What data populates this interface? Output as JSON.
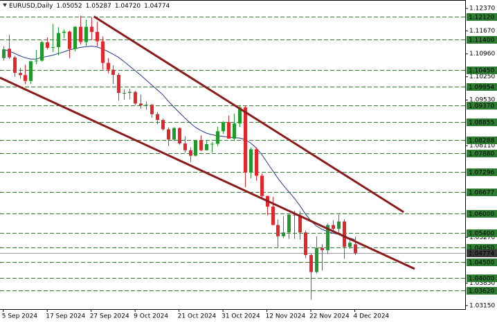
{
  "chart_data": {
    "type": "candlestick",
    "symbol": "EURUSD,Daily",
    "header_values": [
      "1.05052",
      "1.05287",
      "1.04720",
      "1.04774"
    ],
    "categories": [
      "5 Sep 2024",
      null,
      null,
      null,
      null,
      null,
      null,
      null,
      "17 Sep 2024",
      null,
      null,
      null,
      null,
      null,
      null,
      null,
      "27 Sep 2024",
      null,
      null,
      null,
      null,
      null,
      null,
      null,
      "9 Oct 2024",
      null,
      null,
      null,
      null,
      null,
      null,
      null,
      "21 Oct 2024",
      null,
      null,
      null,
      null,
      null,
      null,
      null,
      "31 Oct 2024",
      null,
      null,
      null,
      null,
      null,
      null,
      null,
      "12 Nov 2024",
      null,
      null,
      null,
      null,
      null,
      null,
      null,
      "22 Nov 2024",
      null,
      null,
      null,
      null,
      null,
      null,
      null,
      "4 Dec 2024"
    ],
    "open": [
      1.1083,
      1.1112,
      1.1085,
      1.1037,
      1.103,
      1.1012,
      1.1073,
      1.1075,
      1.1132,
      1.1115,
      1.1117,
      1.1161,
      1.1165,
      1.1111,
      1.118,
      1.1133,
      1.118,
      1.1164,
      1.1135,
      1.1068,
      1.1047,
      1.1031,
      1.0975,
      1.0975,
      1.0978,
      1.0942,
      1.0936,
      1.0938,
      1.0909,
      1.0891,
      1.0862,
      1.083,
      1.0866,
      1.0818,
      1.0797,
      1.078,
      1.0827,
      1.0797,
      1.0816,
      1.0817,
      1.0856,
      1.0884,
      1.0833,
      1.088,
      1.093,
      1.0728,
      1.08,
      1.0718,
      1.0655,
      1.0622,
      1.0565,
      1.053,
      1.0542,
      1.0597,
      1.0595,
      1.0542,
      1.0472,
      1.0419,
      1.0494,
      1.0487,
      1.0565,
      1.0553,
      1.0576,
      1.0497,
      1.05052
    ],
    "high": [
      1.112,
      1.1155,
      1.109,
      1.1052,
      1.1062,
      1.1075,
      1.1108,
      1.1137,
      1.1147,
      1.1189,
      1.1179,
      1.1172,
      1.1168,
      1.1182,
      1.1214,
      1.1202,
      1.1209,
      1.1196,
      1.115,
      1.1083,
      1.106,
      1.1037,
      1.0986,
      1.0988,
      1.0982,
      1.0969,
      1.0948,
      1.0941,
      1.0915,
      1.0896,
      1.0868,
      1.0869,
      1.0868,
      1.084,
      1.0806,
      1.0829,
      1.0843,
      1.0829,
      1.0823,
      1.087,
      1.0887,
      1.0905,
      1.091,
      1.0937,
      1.0936,
      1.0805,
      1.0806,
      1.0725,
      1.0656,
      1.0653,
      1.0582,
      1.0593,
      1.06,
      1.061,
      1.0608,
      1.0548,
      1.0476,
      1.053,
      1.0505,
      1.057,
      1.058,
      1.0597,
      1.0583,
      1.0525,
      1.05287
    ],
    "low": [
      1.1075,
      1.108,
      1.1025,
      1.102,
      1.1002,
      1.1003,
      1.1064,
      1.1072,
      1.111,
      1.1102,
      1.1091,
      1.1145,
      1.1083,
      1.1104,
      1.1125,
      1.1121,
      1.1139,
      1.112,
      1.1047,
      1.1036,
      1.1003,
      1.0951,
      1.0954,
      1.0955,
      1.0937,
      1.0926,
      1.0923,
      1.0898,
      1.0878,
      1.0858,
      1.081,
      1.0826,
      1.0814,
      1.079,
      1.0761,
      1.0778,
      1.0794,
      1.0796,
      1.079,
      1.081,
      1.0848,
      1.0834,
      1.0826,
      1.0869,
      1.0682,
      1.071,
      1.0702,
      1.065,
      1.0595,
      1.0566,
      1.0496,
      1.0524,
      1.0522,
      1.0522,
      1.052,
      1.0462,
      1.0333,
      1.0415,
      1.0423,
      1.0475,
      1.0542,
      1.0541,
      1.046,
      1.0492,
      1.0472
    ],
    "close": [
      1.111,
      1.1085,
      1.1037,
      1.103,
      1.1012,
      1.1073,
      1.1075,
      1.1132,
      1.1115,
      1.1117,
      1.1161,
      1.1165,
      1.1111,
      1.118,
      1.1133,
      1.118,
      1.1164,
      1.1135,
      1.1068,
      1.1047,
      1.1031,
      1.0975,
      1.0975,
      1.0978,
      1.0942,
      1.0936,
      1.0938,
      1.0909,
      1.0891,
      1.0862,
      1.083,
      1.0866,
      1.0818,
      1.0797,
      1.078,
      1.0827,
      1.0797,
      1.0816,
      1.0817,
      1.0856,
      1.0884,
      1.0833,
      1.088,
      1.093,
      1.0728,
      1.08,
      1.0718,
      1.0655,
      1.0622,
      1.0565,
      1.053,
      1.0542,
      1.0597,
      1.0595,
      1.0542,
      1.0472,
      1.0419,
      1.0494,
      1.0487,
      1.0565,
      1.0553,
      1.0576,
      1.0497,
      1.051,
      1.04774
    ],
    "up_color": "#1f9a2b",
    "down_color": "#e4262d",
    "ma": {
      "color": "#1f3a8a",
      "values": [
        1.111,
        1.1105,
        1.1098,
        1.109,
        1.1084,
        1.108,
        1.108,
        1.1085,
        1.1088,
        1.1092,
        1.1097,
        1.1102,
        1.1108,
        1.1112,
        1.1116,
        1.1118,
        1.112,
        1.1118,
        1.1112,
        1.1104,
        1.1095,
        1.1085,
        1.1072,
        1.1058,
        1.1044,
        1.103,
        1.1015,
        1.1,
        1.0985,
        1.097,
        1.095,
        1.0932,
        1.0915,
        1.0898,
        1.0882,
        1.0868,
        1.0858,
        1.085,
        1.0845,
        1.0842,
        1.084,
        1.0838,
        1.0836,
        1.0835,
        1.083,
        1.082,
        1.0805,
        1.0785,
        1.076,
        1.0735,
        1.071,
        1.0688,
        1.0668,
        1.0648,
        1.0625,
        1.06,
        1.0578,
        1.0562,
        1.0552,
        1.0545,
        1.054,
        1.0536,
        1.053,
        1.0525,
        1.052
      ]
    },
    "trendlines": [
      {
        "color": "#8b1a1a",
        "x": [
          16.5,
          72.9
        ],
        "y": [
          1.1212,
          1.0605
        ]
      },
      {
        "color": "#8b1a1a",
        "x": [
          -0.6,
          74.9
        ],
        "y": [
          1.1022,
          1.0429
        ]
      }
    ],
    "levels_color": "#2e7d32",
    "levels": [
      {
        "value": 1.1212,
        "label": "1.12120"
      },
      {
        "value": 1.114,
        "label": "1.11400"
      },
      {
        "value": 1.1045,
        "label": "1.10450"
      },
      {
        "value": 1.09954,
        "label": "1.09954"
      },
      {
        "value": 1.0937,
        "label": "1.09370"
      },
      {
        "value": 1.08855,
        "label": "1.08855"
      },
      {
        "value": 1.08288,
        "label": "1.08288"
      },
      {
        "value": 1.0788,
        "label": "1.07880"
      },
      {
        "value": 1.07296,
        "label": "1.07296"
      },
      {
        "value": 1.06677,
        "label": "1.06677"
      },
      {
        "value": 1.06,
        "label": "1.06000"
      },
      {
        "value": 1.054,
        "label": "1.05400"
      },
      {
        "value": 1.0495,
        "label": "1.04950"
      },
      {
        "value": 1.045,
        "label": "1.04500"
      },
      {
        "value": 1.04,
        "label": "1.04000"
      },
      {
        "value": 1.0362,
        "label": "1.03620"
      }
    ],
    "current_price": {
      "value": 1.04774,
      "label": "1.04774"
    },
    "xlim": [
      -0.6,
      84.1
    ],
    "ylim": [
      1.0304,
      1.1261
    ],
    "yticks": [
      {
        "value": 1.1237,
        "label": "1.12370"
      },
      {
        "value": 1.1167,
        "label": "1.11670"
      },
      {
        "value": 1.1096,
        "label": "1.10960"
      },
      {
        "value": 1.1025,
        "label": "1.10250"
      },
      {
        "value": 1.0953,
        "label": "1.09530"
      },
      {
        "value": 1.0811,
        "label": "1.08110"
      },
      {
        "value": 1.0527,
        "label": "1.05270"
      },
      {
        "value": 1.0385,
        "label": "1.03850"
      },
      {
        "value": 1.0315,
        "label": "1.03150"
      }
    ]
  }
}
